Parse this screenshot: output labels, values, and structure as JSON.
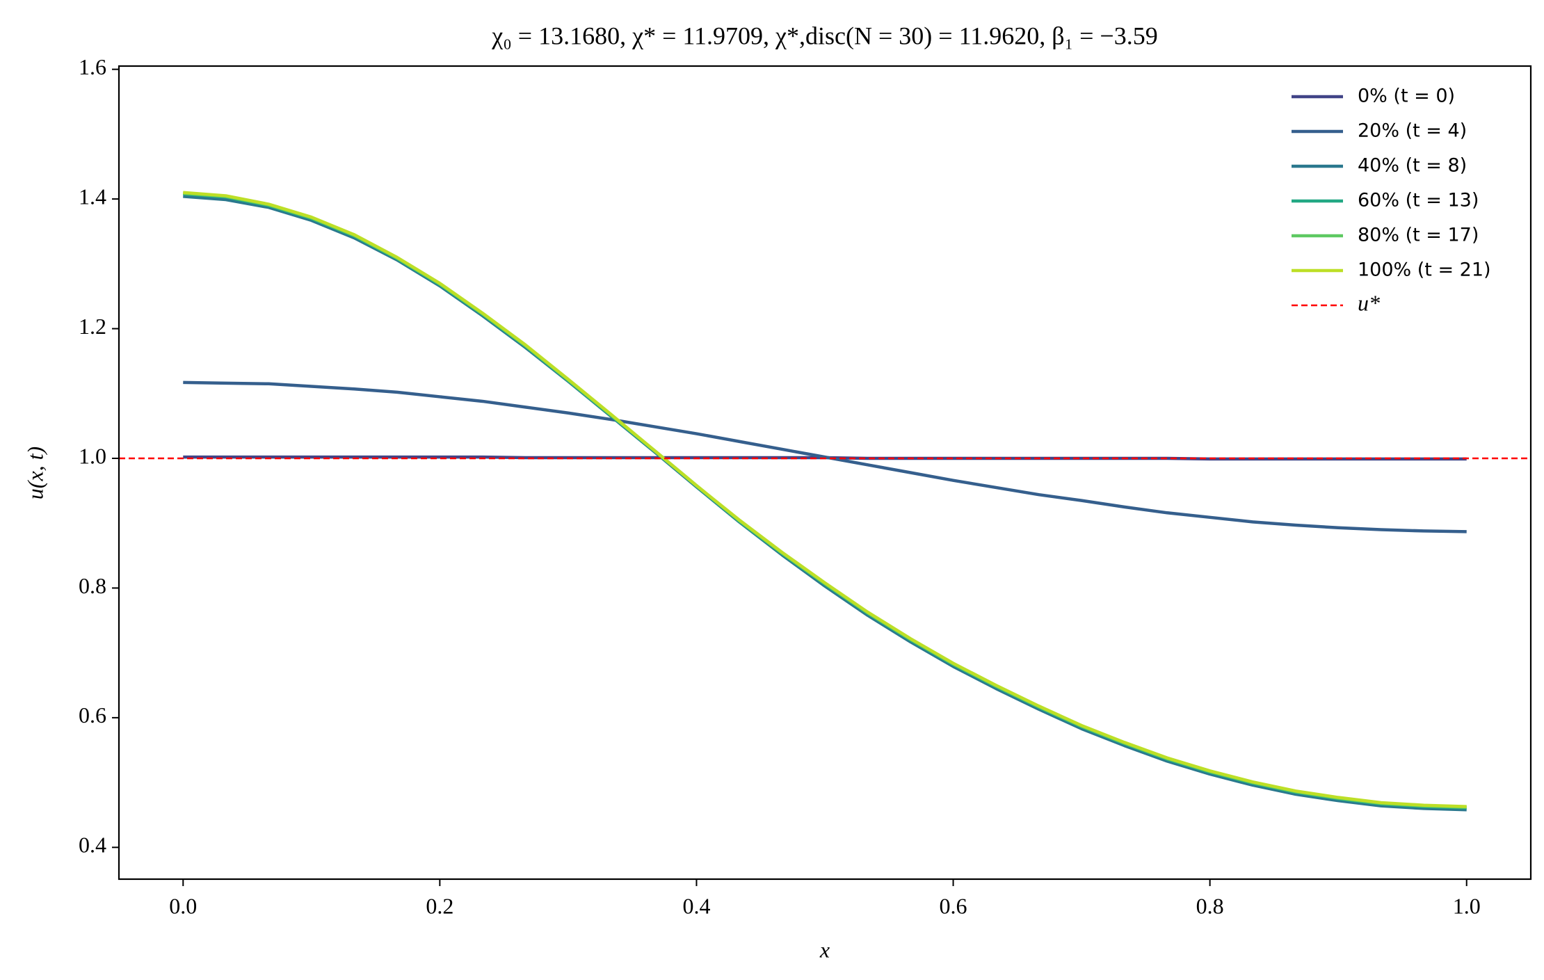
{
  "chart_data": {
    "type": "line",
    "title": "χ₀ = 13.1680,  χ* = 11.9709,  χ*,disc(N = 30) = 11.9620,  β₁ = −3.59",
    "xlabel": "x",
    "ylabel": "u(x, t)",
    "x": [
      0,
      0.0333,
      0.0667,
      0.1,
      0.1333,
      0.1667,
      0.2,
      0.2333,
      0.2667,
      0.3,
      0.3333,
      0.3667,
      0.4,
      0.4333,
      0.4667,
      0.5,
      0.5333,
      0.5667,
      0.6,
      0.6333,
      0.6667,
      0.7,
      0.7333,
      0.7667,
      0.8,
      0.8333,
      0.8667,
      0.9,
      0.9333,
      0.9667,
      1
    ],
    "series": [
      {
        "name": "0% (t = 0)",
        "color": "#414487",
        "values": [
          1.002,
          1.002,
          1.002,
          1.002,
          1.002,
          1.002,
          1.002,
          1.002,
          1.001,
          1.001,
          1.001,
          1.001,
          1.001,
          1.001,
          1.001,
          1.001,
          1.0,
          1.0,
          1.0,
          1.0,
          1.0,
          1.0,
          1.0,
          1.0,
          0.999,
          0.999,
          0.999,
          0.999,
          0.999,
          0.999,
          0.999
        ]
      },
      {
        "name": "20% (t = 4)",
        "color": "#355f8d",
        "values": [
          1.117,
          1.116,
          1.115,
          1.111,
          1.107,
          1.102,
          1.095,
          1.088,
          1.079,
          1.07,
          1.06,
          1.049,
          1.038,
          1.026,
          1.014,
          1.002,
          0.99,
          0.978,
          0.966,
          0.955,
          0.944,
          0.935,
          0.925,
          0.916,
          0.909,
          0.902,
          0.897,
          0.893,
          0.89,
          0.888,
          0.887
        ]
      },
      {
        "name": "40% (t = 8)",
        "color": "#2a788e",
        "values": [
          1.404,
          1.399,
          1.387,
          1.367,
          1.34,
          1.306,
          1.266,
          1.22,
          1.171,
          1.119,
          1.065,
          1.011,
          0.956,
          0.902,
          0.851,
          0.803,
          0.758,
          0.717,
          0.679,
          0.645,
          0.613,
          0.583,
          0.557,
          0.533,
          0.513,
          0.496,
          0.482,
          0.472,
          0.464,
          0.46,
          0.458
        ]
      },
      {
        "name": "60% (t = 13)",
        "color": "#22a884",
        "values": [
          1.408,
          1.403,
          1.39,
          1.37,
          1.343,
          1.308,
          1.268,
          1.222,
          1.173,
          1.12,
          1.066,
          1.012,
          0.957,
          0.903,
          0.853,
          0.806,
          0.761,
          0.72,
          0.682,
          0.648,
          0.616,
          0.586,
          0.56,
          0.536,
          0.516,
          0.499,
          0.485,
          0.475,
          0.467,
          0.463,
          0.461
        ]
      },
      {
        "name": "80% (t = 17)",
        "color": "#5ec962",
        "values": [
          1.409,
          1.404,
          1.391,
          1.371,
          1.344,
          1.309,
          1.269,
          1.223,
          1.174,
          1.121,
          1.067,
          1.013,
          0.958,
          0.904,
          0.854,
          0.807,
          0.762,
          0.721,
          0.683,
          0.649,
          0.617,
          0.587,
          0.561,
          0.537,
          0.517,
          0.5,
          0.486,
          0.476,
          0.468,
          0.464,
          0.462
        ]
      },
      {
        "name": "100% (t = 21)",
        "color": "#bddf26",
        "values": [
          1.41,
          1.405,
          1.392,
          1.372,
          1.345,
          1.31,
          1.27,
          1.224,
          1.175,
          1.122,
          1.068,
          1.013,
          0.958,
          0.905,
          0.855,
          0.808,
          0.763,
          0.722,
          0.684,
          0.65,
          0.618,
          0.588,
          0.562,
          0.538,
          0.518,
          0.501,
          0.487,
          0.477,
          0.469,
          0.465,
          0.463
        ]
      }
    ],
    "hline": {
      "name": "u*",
      "value": 1.0,
      "color": "red",
      "dashed": true
    },
    "xlim": [
      -0.05,
      1.05
    ],
    "xticks": [
      {
        "value": 0,
        "label": "0.0"
      },
      0.2,
      0.4,
      0.6,
      0.8,
      {
        "value": 1,
        "label": "1.0"
      }
    ],
    "ylim": [
      0.351,
      1.605
    ],
    "yticks": [
      0.4,
      0.6,
      0.8,
      {
        "value": 1,
        "label": "1.0"
      },
      1.2,
      1.4,
      1.6
    ],
    "grid": false,
    "legend": "upper right"
  }
}
